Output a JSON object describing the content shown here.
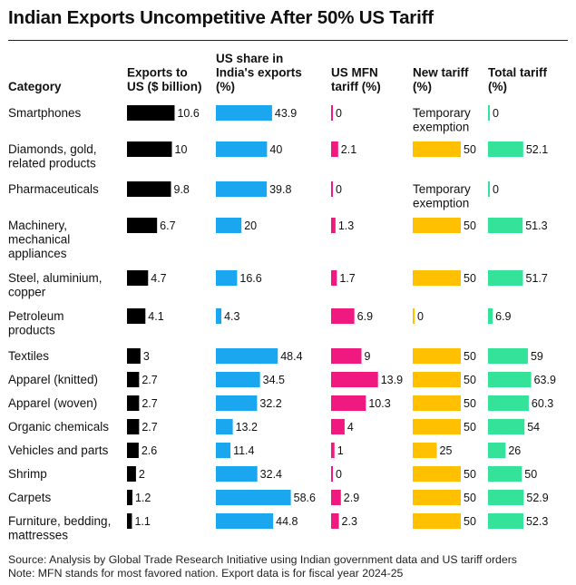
{
  "header": {
    "title": "Indian Exports Uncompetitive After 50% US Tariff"
  },
  "columns": {
    "category": [
      "Category"
    ],
    "exports": [
      "Exports to",
      "US ($ billion)"
    ],
    "us_share": [
      "US share in",
      "India's exports",
      "(%)"
    ],
    "mfn": [
      "US MFN",
      "tariff (%)"
    ],
    "new_tariff": [
      "New tariff",
      "(%)"
    ],
    "total_tariff": [
      "Total tariff",
      "(%)"
    ]
  },
  "colors": {
    "exports": "#000000",
    "us_share": "#1aa7f0",
    "mfn": "#f0197f",
    "new_tariff": "#ffc000",
    "total_tariff": "#34e29a",
    "text": "#111111"
  },
  "footer": {
    "source": "Source: Analysis by Global Trade Research Initiative using Indian government data and US tariff orders",
    "note": "Note: MFN stands for most favored nation. Export data is for fiscal year 2024-25"
  },
  "chart_data": {
    "type": "table",
    "title": "Indian Exports Uncompetitive After 50% US Tariff",
    "columns": [
      "Category",
      "Exports to US ($ billion)",
      "US share in India's exports (%)",
      "US MFN tariff (%)",
      "New tariff (%)",
      "Total tariff (%)"
    ],
    "rows": [
      {
        "category": [
          "Smartphones"
        ],
        "exports": 10.6,
        "us_share": 43.9,
        "mfn": 0,
        "new_tariff": null,
        "new_tariff_label": [
          "Temporary",
          "exemption"
        ],
        "total_tariff": 0
      },
      {
        "category": [
          "Diamonds, gold,",
          "related products"
        ],
        "exports": 10,
        "us_share": 40,
        "mfn": 2.1,
        "new_tariff": 50,
        "total_tariff": 52.1
      },
      {
        "category": [
          "Pharmaceuticals"
        ],
        "exports": 9.8,
        "us_share": 39.8,
        "mfn": 0,
        "new_tariff": null,
        "new_tariff_label": [
          "Temporary",
          "exemption"
        ],
        "total_tariff": 0
      },
      {
        "category": [
          "Machinery,",
          "mechanical",
          "appliances"
        ],
        "exports": 6.7,
        "us_share": 20,
        "mfn": 1.3,
        "new_tariff": 50,
        "total_tariff": 51.3
      },
      {
        "category": [
          "Steel, aluminium,",
          "copper"
        ],
        "exports": 4.7,
        "us_share": 16.6,
        "mfn": 1.7,
        "new_tariff": 50,
        "total_tariff": 51.7
      },
      {
        "category": [
          "Petroleum",
          "products"
        ],
        "exports": 4.1,
        "us_share": 4.3,
        "mfn": 6.9,
        "new_tariff": 0,
        "total_tariff": 6.9
      },
      {
        "category": [
          "Textiles"
        ],
        "exports": 3,
        "us_share": 48.4,
        "mfn": 9,
        "new_tariff": 50,
        "total_tariff": 59
      },
      {
        "category": [
          "Apparel (knitted)"
        ],
        "exports": 2.7,
        "us_share": 34.5,
        "mfn": 13.9,
        "new_tariff": 50,
        "total_tariff": 63.9
      },
      {
        "category": [
          "Apparel (woven)"
        ],
        "exports": 2.7,
        "us_share": 32.2,
        "mfn": 10.3,
        "new_tariff": 50,
        "total_tariff": 60.3
      },
      {
        "category": [
          "Organic chemicals"
        ],
        "exports": 2.7,
        "us_share": 13.2,
        "mfn": 4,
        "new_tariff": 50,
        "total_tariff": 54
      },
      {
        "category": [
          "Vehicles and parts"
        ],
        "exports": 2.6,
        "us_share": 11.4,
        "mfn": 1,
        "new_tariff": 25,
        "total_tariff": 26
      },
      {
        "category": [
          "Shrimp"
        ],
        "exports": 2,
        "us_share": 32.4,
        "mfn": 0,
        "new_tariff": 50,
        "total_tariff": 50
      },
      {
        "category": [
          "Carpets"
        ],
        "exports": 1.2,
        "us_share": 58.6,
        "mfn": 2.9,
        "new_tariff": 50,
        "total_tariff": 52.9
      },
      {
        "category": [
          "Furniture, bedding,",
          "mattresses"
        ],
        "exports": 1.1,
        "us_share": 44.8,
        "mfn": 2.3,
        "new_tariff": 50,
        "total_tariff": 52.3
      }
    ]
  }
}
